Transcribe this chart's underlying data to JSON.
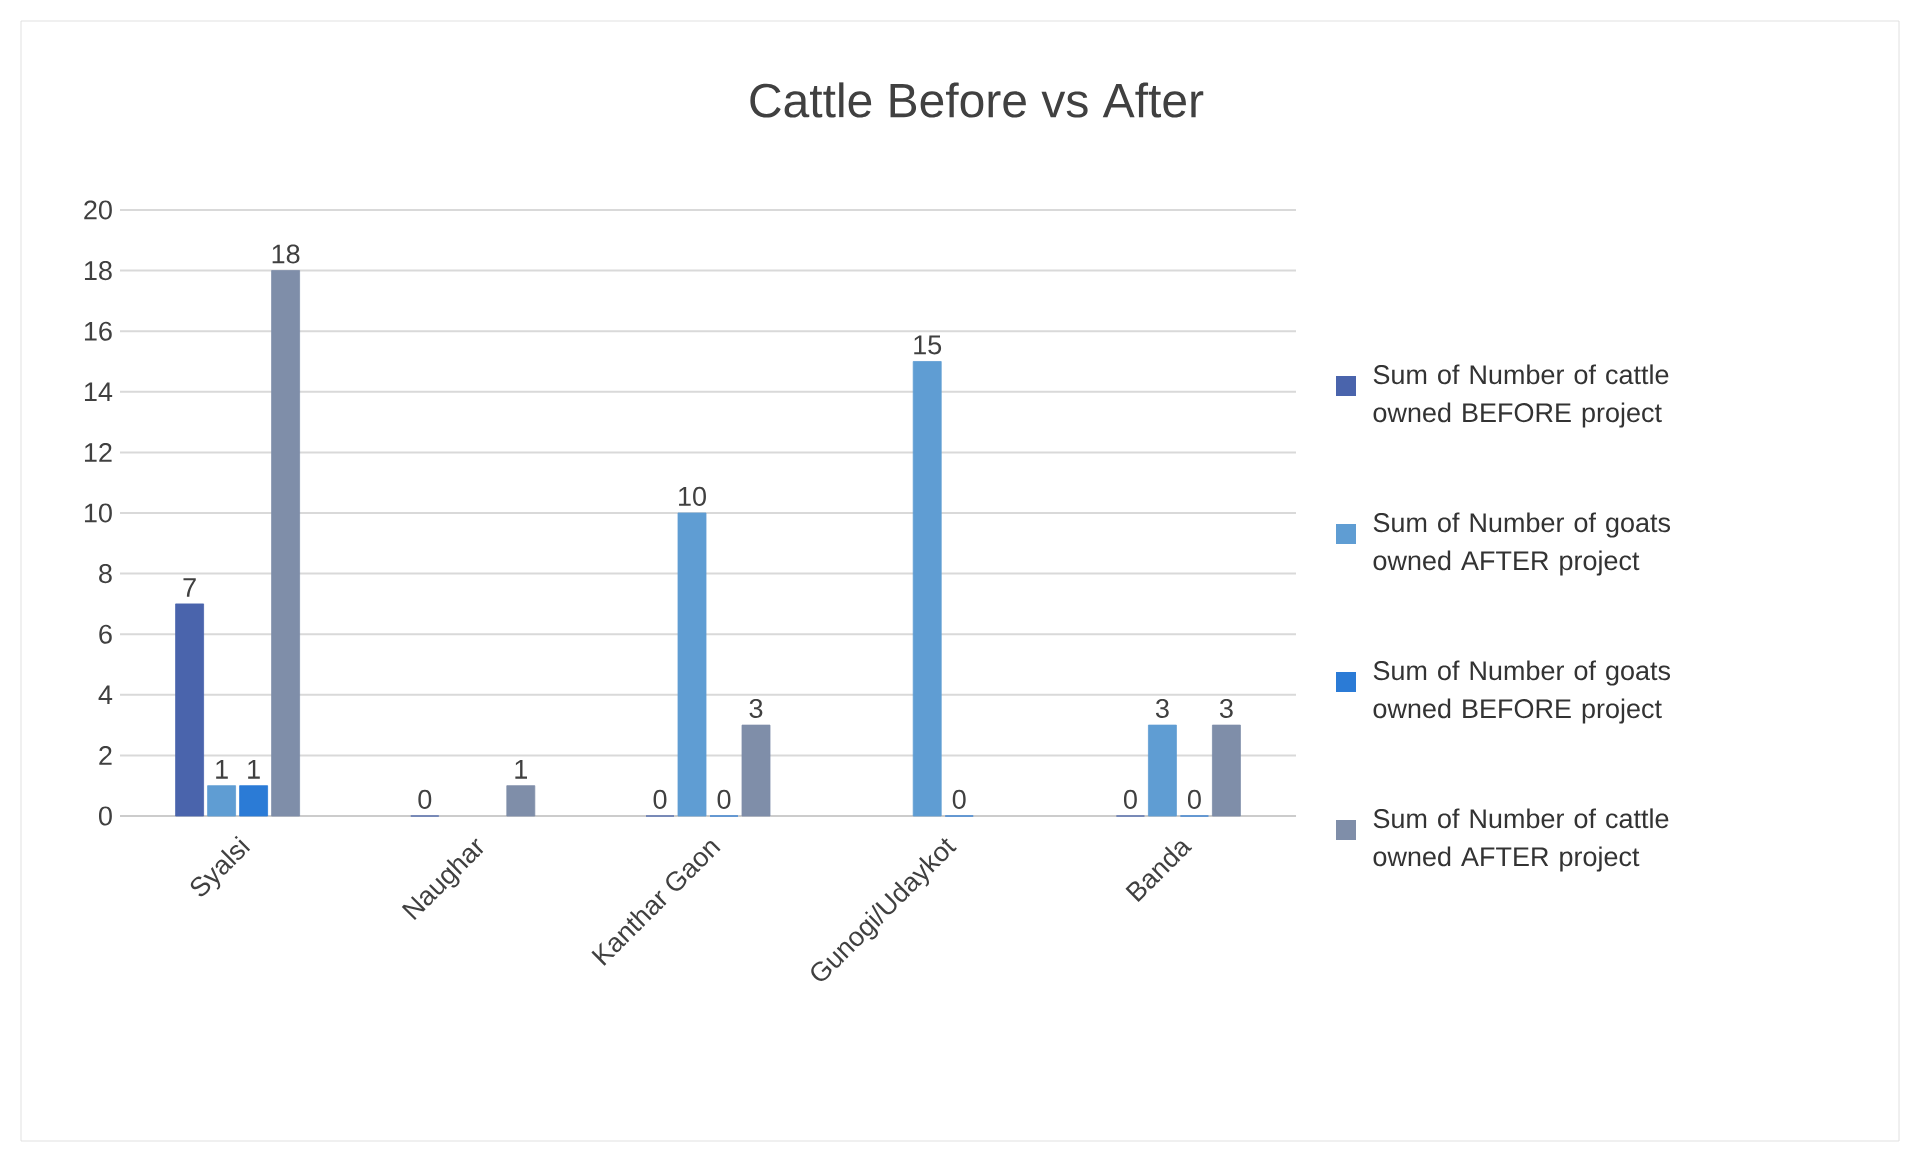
{
  "chart_data": {
    "type": "bar",
    "title": "Cattle Before vs After",
    "categories": [
      "Syalsi",
      "Naughar",
      "Kanthar Gaon",
      "Gunogi/Udaykot",
      "Banda"
    ],
    "series": [
      {
        "name": "Sum of Number of cattle owned BEFORE project",
        "color": "#4a64ac",
        "values": [
          7,
          0,
          0,
          null,
          0
        ]
      },
      {
        "name": "Sum of Number of goats owned AFTER project",
        "color": "#5f9dd3",
        "values": [
          1,
          null,
          10,
          15,
          3
        ]
      },
      {
        "name": "Sum of Number of goats owned BEFORE project",
        "color": "#2b7bd6",
        "values": [
          1,
          null,
          0,
          0,
          0
        ]
      },
      {
        "name": "Sum of Number of cattle owned AFTER project",
        "color": "#7f8ea9",
        "values": [
          18,
          1,
          3,
          null,
          3
        ]
      }
    ],
    "ylim": [
      0,
      20
    ],
    "yticks": [
      0,
      2,
      4,
      6,
      8,
      10,
      12,
      14,
      16,
      18,
      20
    ],
    "grid": "y",
    "legend": "right",
    "data_labels": true
  }
}
